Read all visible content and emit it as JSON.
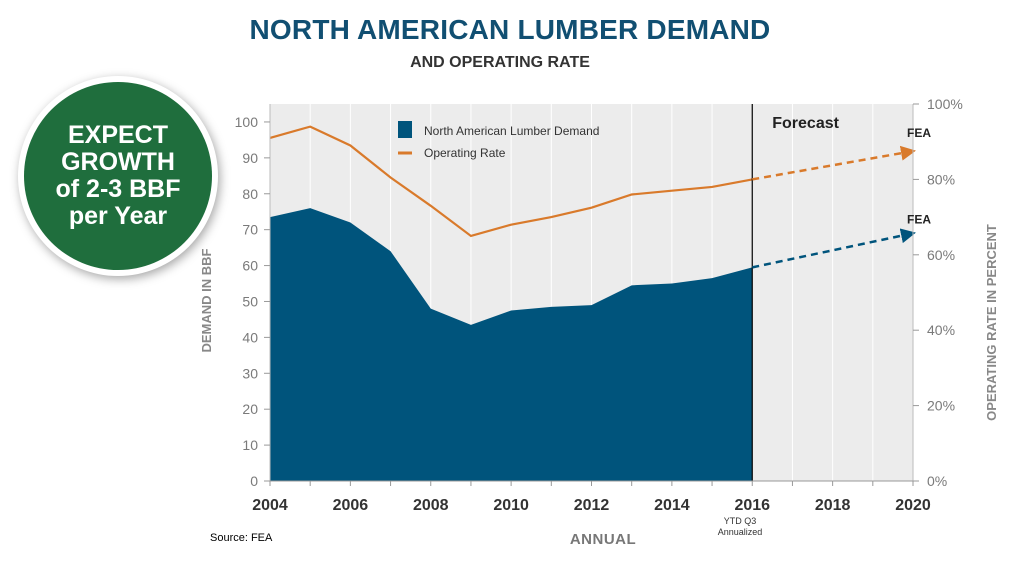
{
  "title": "NORTH AMERICAN LUMBER DEMAND",
  "subtitle": "AND OPERATING RATE",
  "badge": {
    "text": "EXPECT\nGROWTH\nof  2-3 BBF\nper Year"
  },
  "source": "Source: FEA",
  "colors": {
    "title": "#114f72",
    "demand": "#00547c",
    "operating_rate": "#d97a2b",
    "plot_bg": "#ececec",
    "badge": "#1f6e3d"
  },
  "chart_data": {
    "type": "area",
    "xlabel": "ANNUAL",
    "ylabel": "DEMAND IN BBF",
    "y2label": "OPERATING RATE IN PERCENT",
    "xlim": [
      2004,
      2020
    ],
    "ylim": [
      0,
      105
    ],
    "y2lim": [
      0,
      100
    ],
    "x_ticks": [
      2004,
      2006,
      2008,
      2010,
      2012,
      2014,
      2016,
      2018,
      2020
    ],
    "y_ticks": [
      0,
      10,
      20,
      30,
      40,
      50,
      60,
      70,
      80,
      90,
      100
    ],
    "y2_ticks": [
      "0%",
      "20%",
      "40%",
      "60%",
      "80%",
      "100%"
    ],
    "ytd_note": "YTD Q3\nAnnualized",
    "forecast_label": "Forecast",
    "forecast_start": 2016,
    "legend_placement": "top-left",
    "grid": false,
    "series": [
      {
        "name": "North American Lumber Demand",
        "type": "area",
        "axis": "left",
        "x": [
          2004,
          2005,
          2006,
          2007,
          2008,
          2009,
          2010,
          2011,
          2012,
          2013,
          2014,
          2015,
          2016
        ],
        "values": [
          73.5,
          76,
          72,
          64,
          48,
          43.5,
          47.5,
          48.5,
          49,
          54.5,
          55,
          56.5,
          59.5
        ],
        "forecast": {
          "x": [
            2016,
            2020
          ],
          "values": [
            59.5,
            69
          ],
          "label": "FEA"
        }
      },
      {
        "name": "Operating Rate",
        "type": "line",
        "axis": "right",
        "unit": "%",
        "x": [
          2004,
          2005,
          2006,
          2007,
          2008,
          2009,
          2010,
          2011,
          2012,
          2013,
          2014,
          2015,
          2016
        ],
        "values": [
          91,
          94,
          89,
          80.5,
          73,
          65,
          68,
          70,
          72.5,
          76,
          77,
          78,
          80
        ],
        "forecast": {
          "x": [
            2016,
            2020
          ],
          "values": [
            80,
            87.5
          ],
          "label": "FEA"
        }
      }
    ]
  }
}
